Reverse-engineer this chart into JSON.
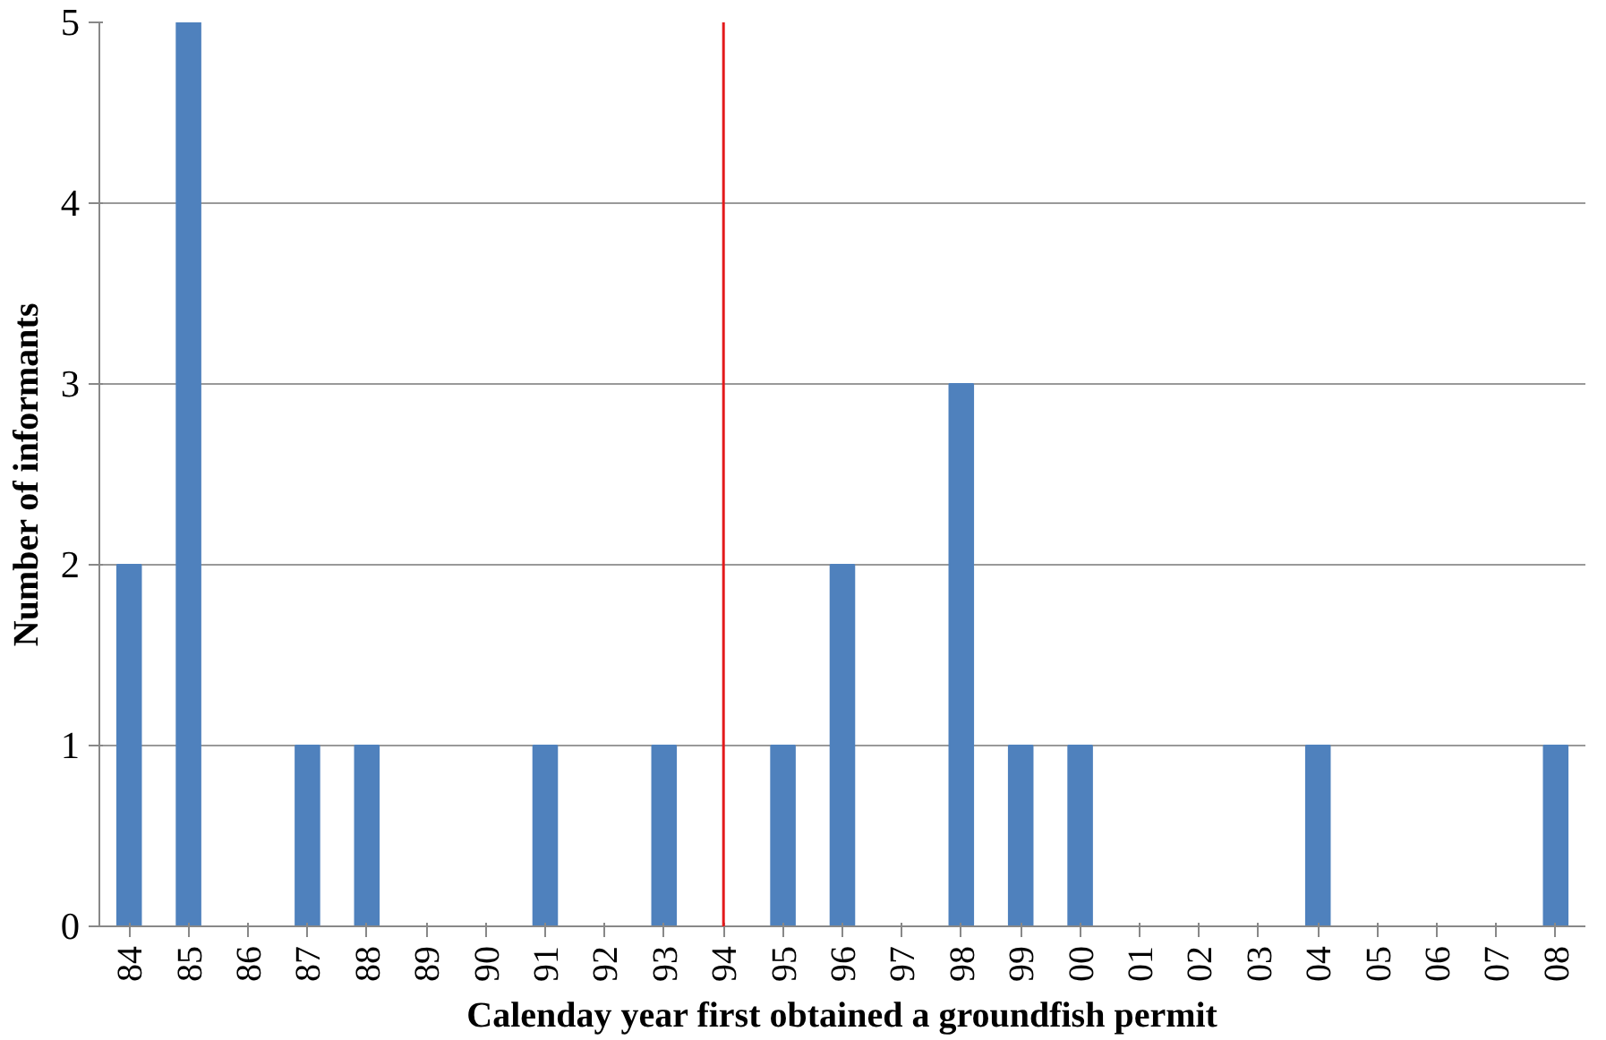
{
  "chart_data": {
    "type": "bar",
    "xlabel": "Calenday year first obtained a groundfish permit",
    "ylabel": "Number of informants",
    "categories": [
      "84",
      "85",
      "86",
      "87",
      "88",
      "89",
      "90",
      "91",
      "92",
      "93",
      "94",
      "95",
      "96",
      "97",
      "98",
      "99",
      "00",
      "01",
      "02",
      "03",
      "04",
      "05",
      "06",
      "07",
      "08"
    ],
    "values": [
      2,
      5,
      0,
      1,
      1,
      0,
      0,
      1,
      0,
      1,
      0,
      1,
      2,
      0,
      3,
      1,
      1,
      0,
      0,
      0,
      1,
      0,
      0,
      0,
      1
    ],
    "color": "#4f81bd",
    "ylim": [
      0,
      5
    ],
    "yticks": [
      0,
      1,
      2,
      3,
      4,
      5
    ],
    "grid": "y",
    "ref_lines": [
      {
        "axis": "x",
        "value": "94",
        "color": "#e31a1c"
      }
    ]
  }
}
